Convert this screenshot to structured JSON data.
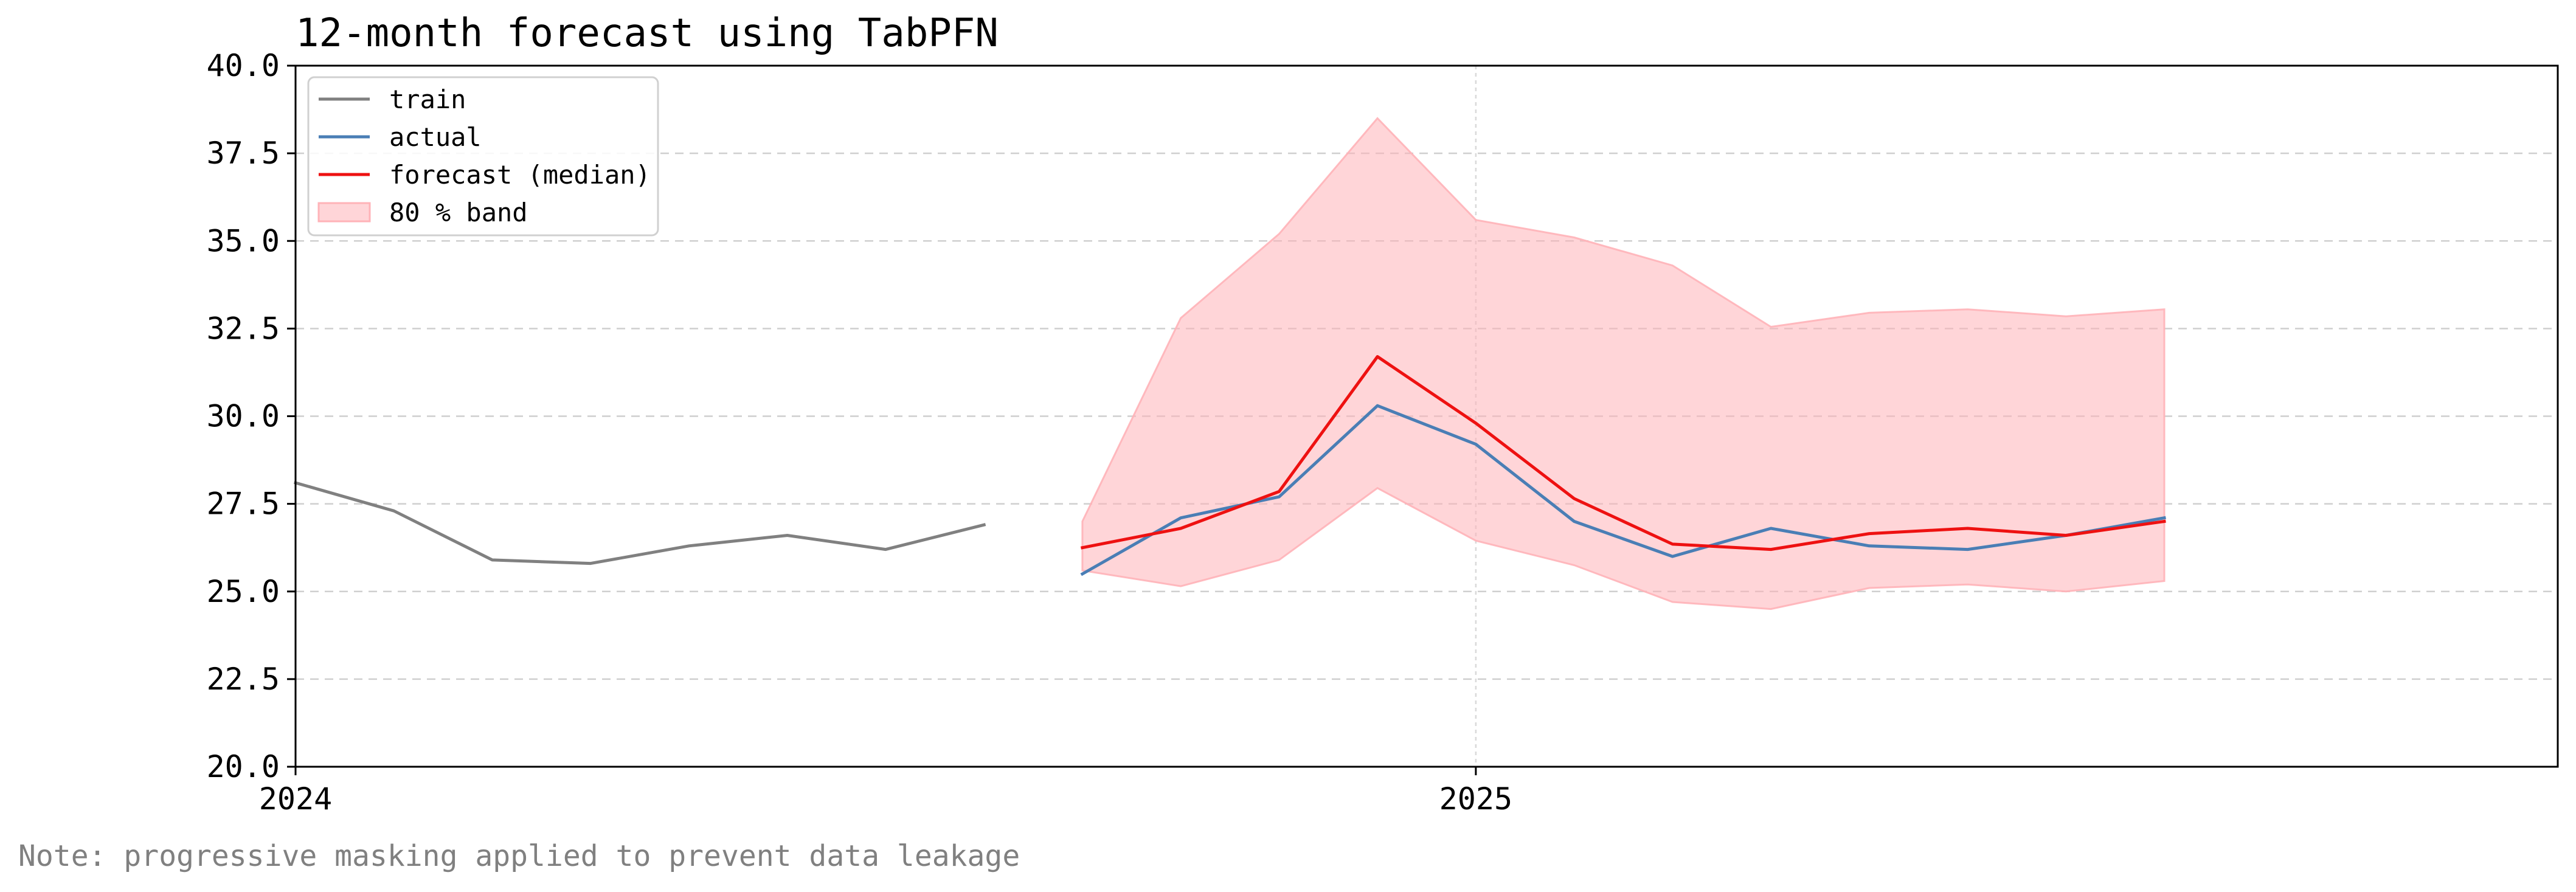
{
  "chart_data": {
    "type": "line",
    "title": "12-month forecast using TabPFN",
    "xlabel": "",
    "ylabel": "",
    "x_axis": {
      "type": "date",
      "range": [
        "2024-01",
        "2025-12"
      ],
      "tick_labels": [
        "2024",
        "2025"
      ],
      "tick_values": [
        "2024-01",
        "2025-01"
      ]
    },
    "ylim": [
      20.0,
      40.0
    ],
    "y_ticks": [
      "20.0",
      "22.5",
      "25.0",
      "27.5",
      "30.0",
      "32.5",
      "35.0",
      "37.5",
      "40.0"
    ],
    "grid": {
      "horizontal": "dashed",
      "vertical": "at x ticks"
    },
    "legend": {
      "placement": "top-left",
      "entries": [
        {
          "label": "train",
          "color": "#808080",
          "kind": "line"
        },
        {
          "label": "actual",
          "color": "#4a7eb5",
          "kind": "line"
        },
        {
          "label": "forecast (median)",
          "color": "#ee1111",
          "kind": "line"
        },
        {
          "label": "80 % band",
          "color": "#ffb3b8",
          "kind": "patch"
        }
      ]
    },
    "series": [
      {
        "name": "train",
        "color": "#808080",
        "x": [
          "2024-01",
          "2024-02",
          "2024-03",
          "2024-04",
          "2024-05",
          "2024-06",
          "2024-07",
          "2024-08"
        ],
        "values": [
          28.1,
          27.3,
          25.9,
          25.8,
          26.3,
          26.6,
          26.2,
          26.9
        ]
      },
      {
        "name": "actual",
        "color": "#4a7eb5",
        "x": [
          "2024-09",
          "2024-10",
          "2024-11",
          "2024-12",
          "2025-01",
          "2025-02",
          "2025-03",
          "2025-04",
          "2025-05",
          "2025-06",
          "2025-07",
          "2025-08"
        ],
        "values": [
          25.5,
          27.1,
          27.7,
          30.3,
          29.2,
          27.0,
          26.0,
          26.8,
          26.3,
          26.2,
          26.6,
          27.1
        ]
      },
      {
        "name": "forecast (median)",
        "color": "#ee1111",
        "x": [
          "2024-09",
          "2024-10",
          "2024-11",
          "2024-12",
          "2025-01",
          "2025-02",
          "2025-03",
          "2025-04",
          "2025-05",
          "2025-06",
          "2025-07",
          "2025-08"
        ],
        "values": [
          26.25,
          26.8,
          27.85,
          31.7,
          29.8,
          27.65,
          26.35,
          26.2,
          26.65,
          26.8,
          26.6,
          27.0
        ]
      }
    ],
    "band": {
      "name": "80 % band",
      "color": "#ffb3b8",
      "x": [
        "2024-09",
        "2024-10",
        "2024-11",
        "2024-12",
        "2025-01",
        "2025-02",
        "2025-03",
        "2025-04",
        "2025-05",
        "2025-06",
        "2025-07",
        "2025-08"
      ],
      "lower": [
        25.6,
        25.15,
        25.9,
        27.95,
        26.45,
        25.75,
        24.7,
        24.5,
        25.1,
        25.2,
        25.0,
        25.3
      ],
      "upper": [
        27.0,
        32.8,
        35.2,
        38.5,
        35.6,
        35.1,
        34.3,
        32.55,
        32.95,
        33.05,
        32.85,
        33.05
      ]
    }
  },
  "note": "Note: progressive masking applied to prevent data leakage"
}
